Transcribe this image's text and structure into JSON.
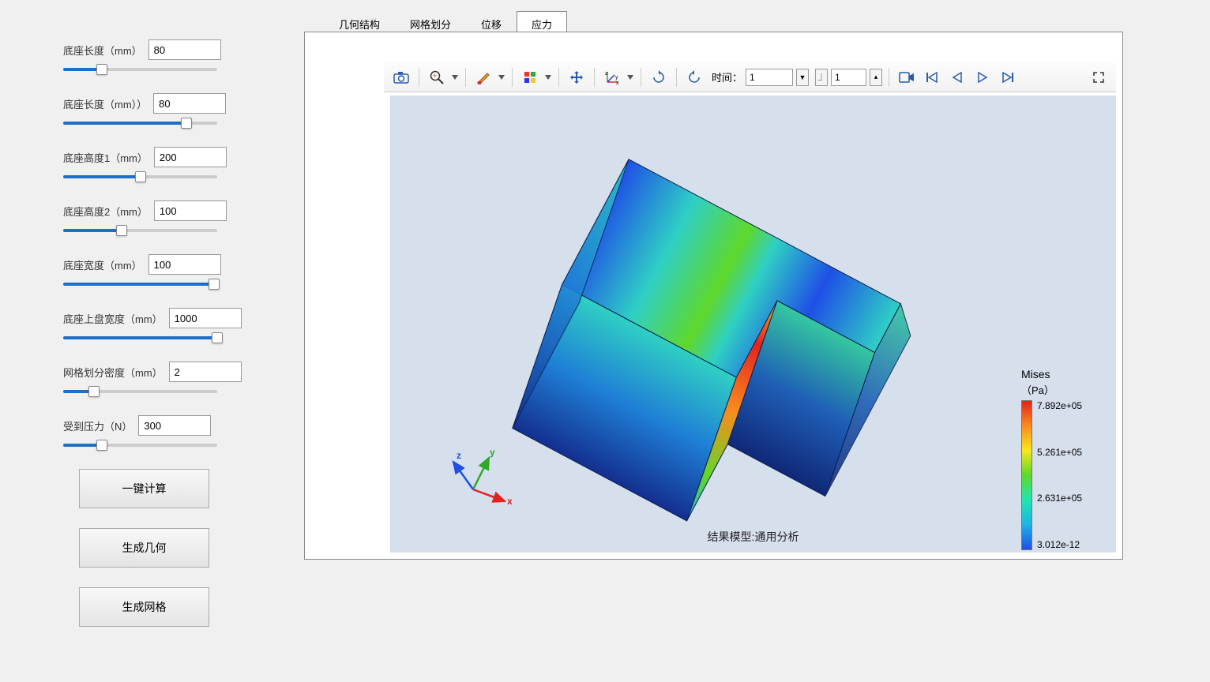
{
  "sidebar": {
    "params": [
      {
        "label": "底座长度（mm）",
        "value": "80",
        "fill_pct": 25
      },
      {
        "label": "底座长度（mm））",
        "value": "80",
        "fill_pct": 80
      },
      {
        "label": "底座高度1（mm）",
        "value": "200",
        "fill_pct": 50
      },
      {
        "label": "底座高度2（mm）",
        "value": "100",
        "fill_pct": 38
      },
      {
        "label": "底座宽度（mm）",
        "value": "100",
        "fill_pct": 98
      },
      {
        "label": "底座上盘宽度（mm）",
        "value": "1000",
        "fill_pct": 100
      },
      {
        "label": "网格划分密度（mm）",
        "value": "2",
        "fill_pct": 20
      },
      {
        "label": "受到压力（N）",
        "value": "300",
        "fill_pct": 25
      }
    ],
    "buttons": [
      {
        "name": "compute-button",
        "label": "一键计算"
      },
      {
        "name": "gen-geometry-button",
        "label": "生成几何"
      },
      {
        "name": "gen-mesh-button",
        "label": "生成网格"
      }
    ]
  },
  "tabs": [
    {
      "name": "tab-geometry",
      "label": "几何结构",
      "active": false
    },
    {
      "name": "tab-mesh",
      "label": "网格划分",
      "active": false
    },
    {
      "name": "tab-disp",
      "label": "位移",
      "active": false
    },
    {
      "name": "tab-stress",
      "label": "应力",
      "active": true
    }
  ],
  "toolbar": {
    "time_label": "时间：",
    "time_value": "1",
    "frame_value": "1"
  },
  "result": {
    "label": "结果模型:通用分析",
    "legend": {
      "title": "Mises",
      "unit": "（Pa）",
      "ticks": [
        "7.892e+05",
        "5.261e+05",
        "2.631e+05",
        "3.012e-12"
      ],
      "gradient_colors": [
        "#e3221f",
        "#f98c1e",
        "#f7e81e",
        "#5fd82a",
        "#1fe6b0",
        "#1fb4e6",
        "#1f4fe6"
      ]
    },
    "background": "#d6dfec",
    "triad": {
      "x_color": "#e3221f",
      "y_color": "#2fa82a",
      "z_color": "#1f4fe6"
    }
  }
}
